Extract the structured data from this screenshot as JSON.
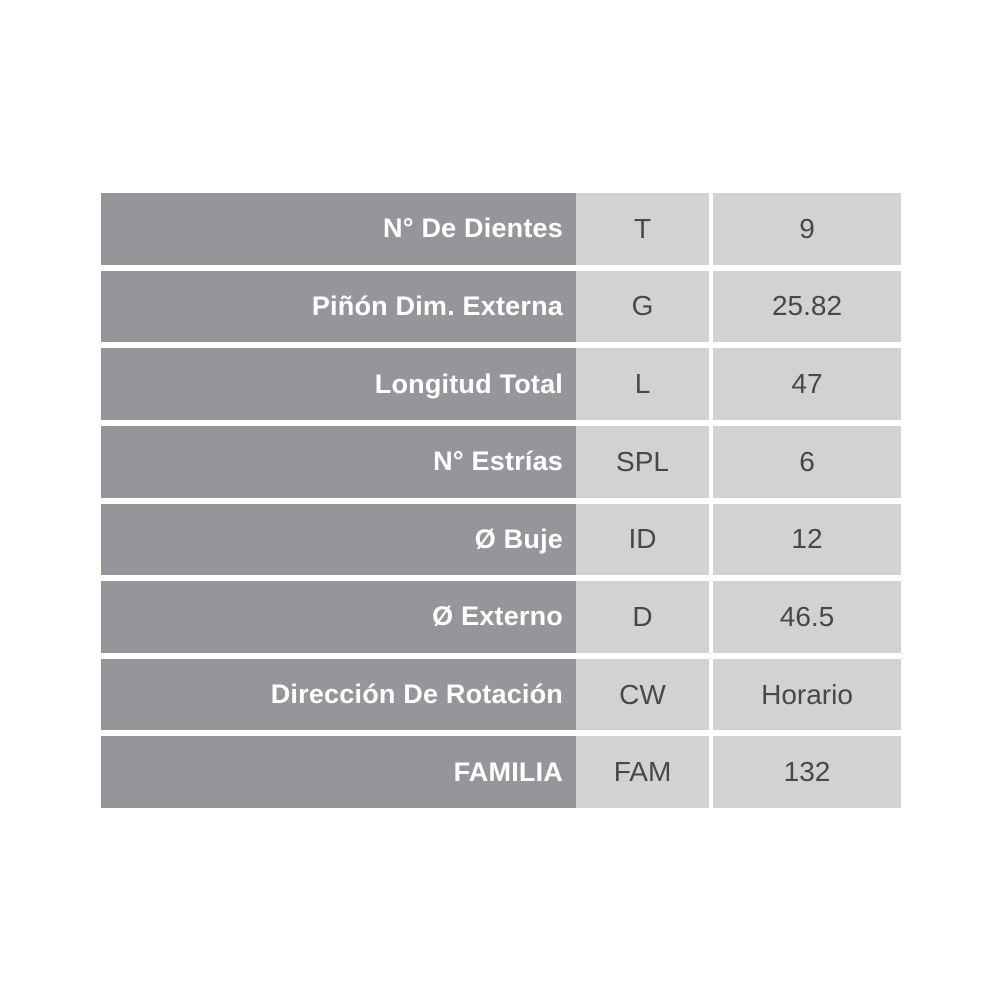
{
  "colors": {
    "page_bg": "#ffffff",
    "label_bg": "#95969a",
    "label_text": "#ffffff",
    "cell_bg": "#d2d2d2",
    "cell_text": "#48484c"
  },
  "spec_table": {
    "rows": [
      {
        "label": "N° De Dientes",
        "code": "T",
        "value": "9"
      },
      {
        "label": "Piñón Dim. Externa",
        "code": "G",
        "value": "25.82"
      },
      {
        "label": "Longitud Total",
        "code": "L",
        "value": "47"
      },
      {
        "label": "N° Estrías",
        "code": "SPL",
        "value": "6"
      },
      {
        "label": "Ø Buje",
        "code": "ID",
        "value": "12"
      },
      {
        "label": "Ø Externo",
        "code": "D",
        "value": "46.5"
      },
      {
        "label": "Dirección De Rotación",
        "code": "CW",
        "value": "Horario"
      },
      {
        "label": "FAMILIA",
        "code": "FAM",
        "value": "132"
      }
    ]
  },
  "chart_data": {
    "type": "table",
    "title": "",
    "columns": [
      "label",
      "code",
      "value"
    ],
    "rows": [
      [
        "N° De Dientes",
        "T",
        "9"
      ],
      [
        "Piñón Dim. Externa",
        "G",
        "25.82"
      ],
      [
        "Longitud Total",
        "L",
        "47"
      ],
      [
        "N° Estrías",
        "SPL",
        "6"
      ],
      [
        "Ø Buje",
        "ID",
        "12"
      ],
      [
        "Ø Externo",
        "D",
        "46.5"
      ],
      [
        "Dirección De Rotación",
        "CW",
        "Horario"
      ],
      [
        "FAMILIA",
        "FAM",
        "132"
      ]
    ]
  }
}
